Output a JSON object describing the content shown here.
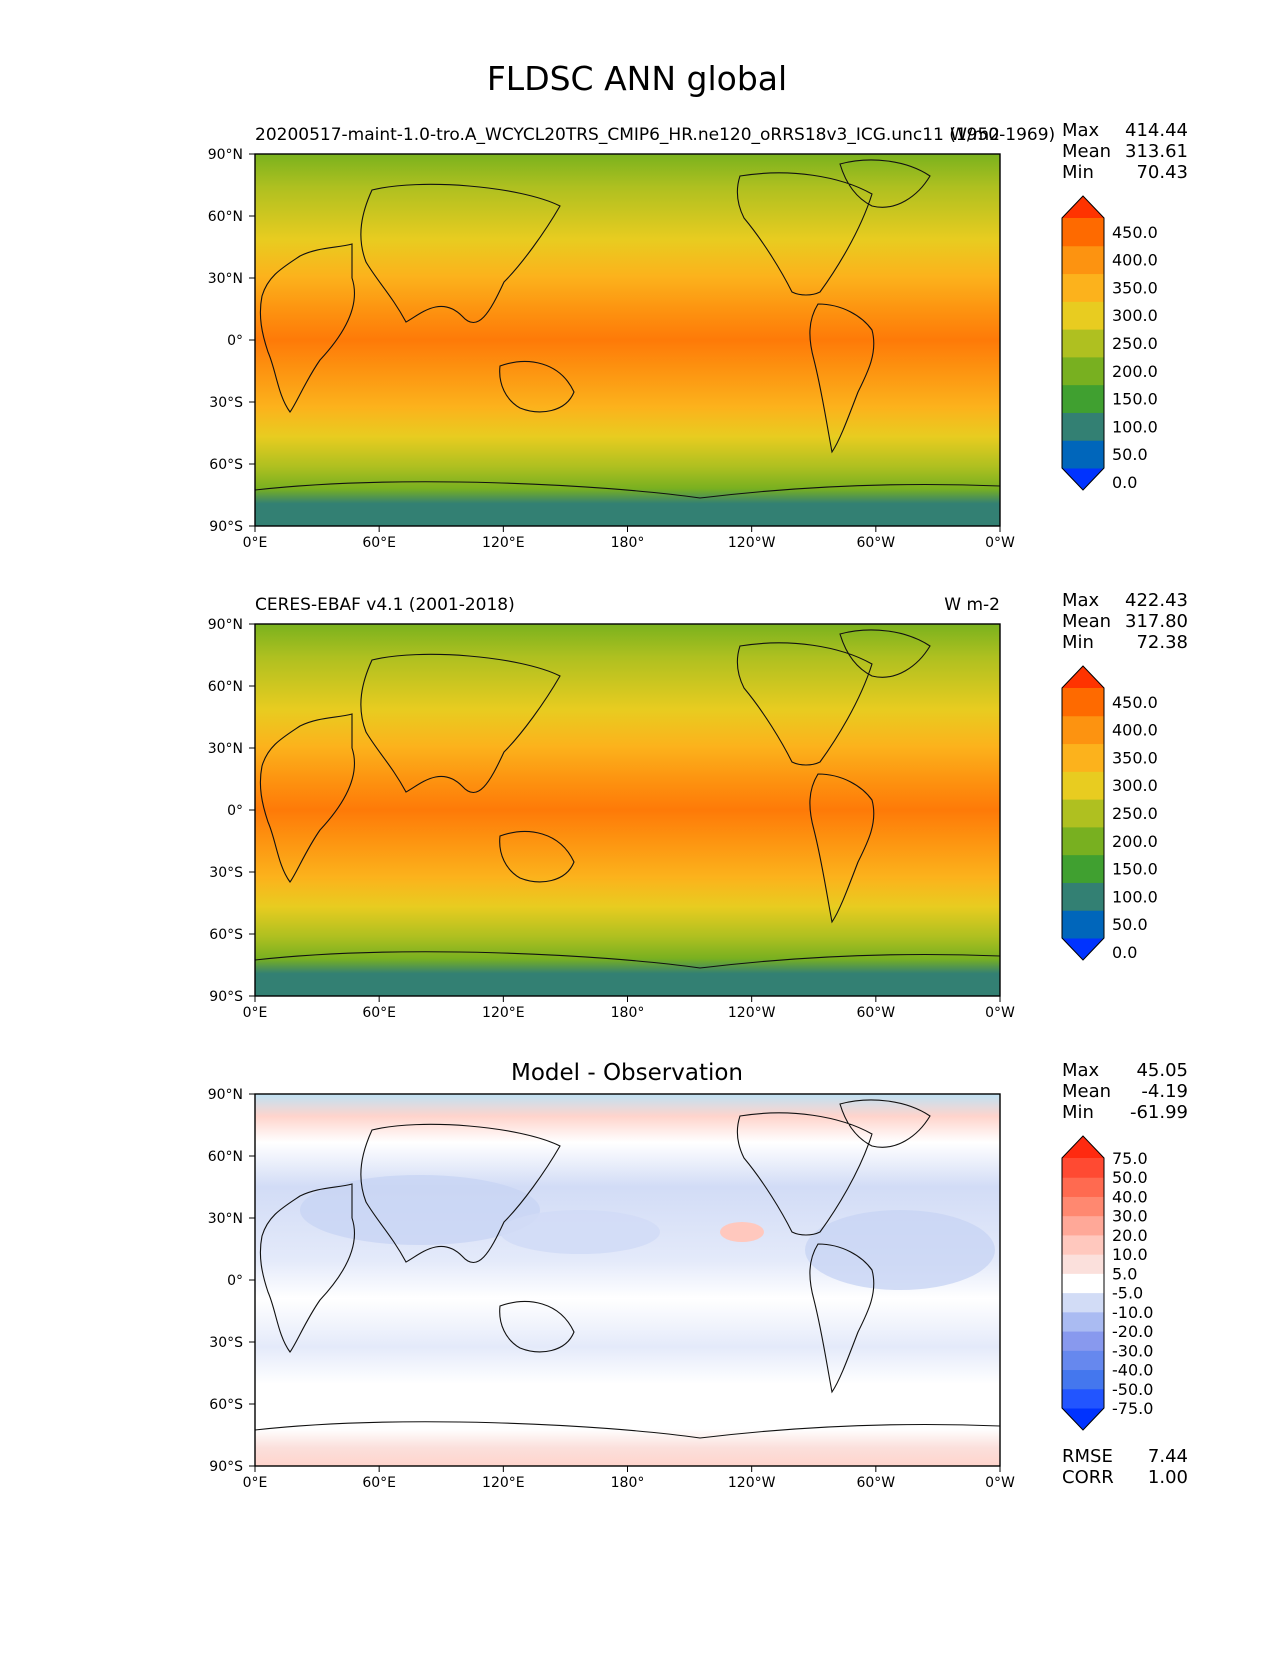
{
  "title": "FLDSC ANN global",
  "chart_data": [
    {
      "type": "heatmap",
      "panel": "model",
      "subtitle_left": "20200517-maint-1.0-tro.A_WCYCL20TRS_CMIP6_HR.ne120_oRRS18v3_ICG.unc11 (1950-1969)",
      "subtitle_right": "W/m2",
      "stats": {
        "max_label": "Max",
        "max": "414.44",
        "mean_label": "Mean",
        "mean": "313.61",
        "min_label": "Min",
        "min": "70.43"
      },
      "colorbar_ticks": [
        "450.0",
        "400.0",
        "350.0",
        "300.0",
        "250.0",
        "200.0",
        "150.0",
        "100.0",
        "50.0",
        "0.0"
      ],
      "colors": [
        "#0033ff",
        "#0066bb",
        "#338073",
        "#40a030",
        "#78b020",
        "#afc020",
        "#e8cc20",
        "#fcb21c",
        "#fd9310",
        "#fe6a00",
        "#ff3300"
      ],
      "x_ticks": [
        "0°E",
        "60°E",
        "120°E",
        "180°",
        "120°W",
        "60°W",
        "0°W"
      ],
      "y_ticks": [
        "90°N",
        "60°N",
        "30°N",
        "0°",
        "30°S",
        "60°S",
        "90°S"
      ],
      "xlim": [
        0,
        360
      ],
      "ylim": [
        -90,
        90
      ]
    },
    {
      "type": "heatmap",
      "panel": "observation",
      "subtitle_left": "CERES-EBAF v4.1 (2001-2018)",
      "subtitle_right": "W m-2",
      "stats": {
        "max_label": "Max",
        "max": "422.43",
        "mean_label": "Mean",
        "mean": "317.80",
        "min_label": "Min",
        "min": "72.38"
      },
      "colorbar_ticks": [
        "450.0",
        "400.0",
        "350.0",
        "300.0",
        "250.0",
        "200.0",
        "150.0",
        "100.0",
        "50.0",
        "0.0"
      ],
      "colors": [
        "#0033ff",
        "#0066bb",
        "#338073",
        "#40a030",
        "#78b020",
        "#afc020",
        "#e8cc20",
        "#fcb21c",
        "#fd9310",
        "#fe6a00",
        "#ff3300"
      ],
      "x_ticks": [
        "0°E",
        "60°E",
        "120°E",
        "180°",
        "120°W",
        "60°W",
        "0°W"
      ],
      "y_ticks": [
        "90°N",
        "60°N",
        "30°N",
        "0°",
        "30°S",
        "60°S",
        "90°S"
      ],
      "xlim": [
        0,
        360
      ],
      "ylim": [
        -90,
        90
      ]
    },
    {
      "type": "heatmap",
      "panel": "difference",
      "subtitle_center": "Model - Observation",
      "stats": {
        "max_label": "Max",
        "max": "45.05",
        "mean_label": "Mean",
        "mean": "-4.19",
        "min_label": "Min",
        "min": "-61.99"
      },
      "colorbar_ticks": [
        "75.0",
        "50.0",
        "40.0",
        "30.0",
        "20.0",
        "10.0",
        "5.0",
        "-5.0",
        "-10.0",
        "-20.0",
        "-30.0",
        "-40.0",
        "-50.0",
        "-75.0"
      ],
      "colors": [
        "#0033ff",
        "#2255ff",
        "#4477ee",
        "#6688ee",
        "#8899ee",
        "#aabbf2",
        "#d2dcf6",
        "#ffffff",
        "#fbe0dc",
        "#ffc8be",
        "#ffa898",
        "#ff8870",
        "#ff6a50",
        "#ff4a32",
        "#ff2a10"
      ],
      "x_ticks": [
        "0°E",
        "60°E",
        "120°E",
        "180°",
        "120°W",
        "60°W",
        "0°W"
      ],
      "y_ticks": [
        "90°N",
        "60°N",
        "30°N",
        "0°",
        "30°S",
        "60°S",
        "90°S"
      ],
      "xlim": [
        0,
        360
      ],
      "ylim": [
        -90,
        90
      ],
      "rmse_label": "RMSE",
      "rmse": "7.44",
      "corr_label": "CORR",
      "corr": "1.00"
    }
  ]
}
